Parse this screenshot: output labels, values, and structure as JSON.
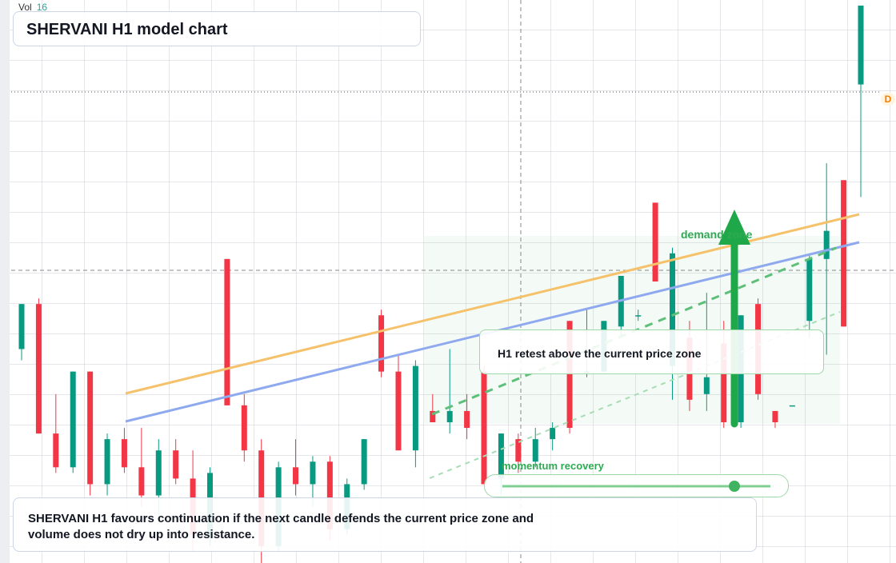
{
  "chart_data": {
    "type": "candlestick",
    "title": "SHERVANI H1 model chart",
    "volume_label": "Vol",
    "volume_value": "16",
    "marker_label": "D",
    "zone_label": "demand zone",
    "callout": "H1 retest above the current price zone",
    "slider_label": "momentum recovery",
    "footer": "SHERVANI H1 favours continuation if the next candle defends the current price zone and volume does not dry up into resistance.",
    "up_color": "#089981",
    "down_color": "#f23645",
    "ylim": [
      0,
      100
    ],
    "open": [
      38,
      46,
      23,
      17,
      34,
      14,
      22,
      17,
      12,
      20,
      15,
      5,
      54,
      28,
      20,
      3,
      17,
      14,
      18,
      6,
      14,
      44,
      34,
      20,
      27,
      25,
      27,
      34,
      15,
      22,
      18,
      22,
      43,
      34,
      34,
      42,
      44,
      64,
      35,
      40,
      30,
      39,
      25,
      46,
      27,
      28,
      43,
      54,
      68,
      85
    ],
    "high": [
      46,
      47,
      30,
      34,
      34,
      23,
      24,
      24,
      22,
      22,
      20,
      17,
      54,
      30,
      22,
      18,
      22,
      19,
      19,
      15,
      22,
      45,
      37,
      36,
      30,
      38,
      30,
      35,
      23,
      23,
      24,
      25,
      43,
      45,
      43,
      51,
      45,
      64,
      56,
      43,
      48,
      43,
      44,
      47,
      27,
      28,
      55,
      71,
      68,
      99
    ],
    "low": [
      36,
      23,
      16,
      16,
      12,
      12,
      16,
      10,
      8,
      14,
      2,
      3,
      28,
      18,
      0,
      2,
      12,
      10,
      4,
      5,
      13,
      33,
      20,
      17,
      25,
      23,
      22,
      14,
      12,
      16,
      17,
      20,
      23,
      33,
      34,
      40,
      43,
      50,
      29,
      27,
      27,
      24,
      24,
      29,
      24,
      28,
      40,
      37,
      42,
      65
    ],
    "close": [
      46,
      23,
      17,
      34,
      14,
      22,
      17,
      12,
      20,
      15,
      5,
      16,
      28,
      20,
      3,
      17,
      14,
      18,
      6,
      14,
      22,
      34,
      20,
      35,
      25,
      27,
      24,
      14,
      23,
      18,
      22,
      24,
      24,
      34,
      43,
      51,
      44,
      50,
      55,
      29,
      33,
      25,
      44,
      30,
      25,
      28,
      54,
      59,
      42,
      99
    ]
  }
}
